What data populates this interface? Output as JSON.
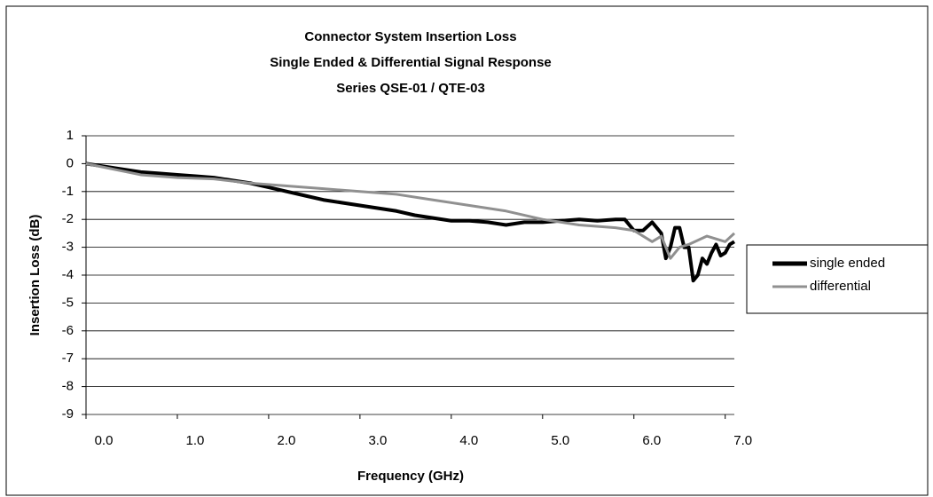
{
  "chart_data": {
    "type": "line",
    "title": [
      "Connector System Insertion Loss",
      "Single Ended & Differential Signal Response",
      "Series QSE-01 / QTE-03"
    ],
    "xlabel": "Frequency (GHz)",
    "ylabel": "Insertion Loss (dB)",
    "xlim": [
      0,
      7.1
    ],
    "ylim": [
      -9,
      1
    ],
    "xticks": [
      {
        "value": 0,
        "label": "0.0"
      },
      {
        "value": 1,
        "label": "1.0"
      },
      {
        "value": 2,
        "label": "2.0"
      },
      {
        "value": 3,
        "label": "3.0"
      },
      {
        "value": 4,
        "label": "4.0"
      },
      {
        "value": 5,
        "label": "5.0"
      },
      {
        "value": 6,
        "label": "6.0"
      },
      {
        "value": 7,
        "label": "7.0"
      }
    ],
    "yticks": [
      1,
      0,
      -1,
      -2,
      -3,
      -4,
      -5,
      -6,
      -7,
      -8,
      -9
    ],
    "grid": true,
    "legend": "right",
    "series": [
      {
        "name": "single ended",
        "color": "#000000",
        "x": [
          0,
          0.2,
          0.4,
          0.6,
          0.8,
          1.0,
          1.2,
          1.4,
          1.6,
          1.8,
          2.0,
          2.2,
          2.4,
          2.6,
          2.8,
          3.0,
          3.2,
          3.4,
          3.6,
          3.8,
          4.0,
          4.2,
          4.4,
          4.6,
          4.8,
          5.0,
          5.2,
          5.4,
          5.6,
          5.8,
          5.9,
          6.0,
          6.1,
          6.2,
          6.3,
          6.35,
          6.4,
          6.45,
          6.5,
          6.55,
          6.6,
          6.65,
          6.7,
          6.75,
          6.8,
          6.85,
          6.9,
          6.95,
          7.0,
          7.05,
          7.1
        ],
        "values": [
          0,
          -0.1,
          -0.2,
          -0.3,
          -0.35,
          -0.4,
          -0.45,
          -0.5,
          -0.6,
          -0.7,
          -0.85,
          -1.0,
          -1.15,
          -1.3,
          -1.4,
          -1.5,
          -1.6,
          -1.7,
          -1.85,
          -1.95,
          -2.05,
          -2.05,
          -2.1,
          -2.2,
          -2.1,
          -2.1,
          -2.05,
          -2.0,
          -2.05,
          -2.0,
          -2.0,
          -2.4,
          -2.4,
          -2.1,
          -2.5,
          -3.4,
          -3.0,
          -2.3,
          -2.3,
          -3.0,
          -3.0,
          -4.2,
          -4.0,
          -3.4,
          -3.6,
          -3.2,
          -2.9,
          -3.3,
          -3.2,
          -2.9,
          -2.8
        ]
      },
      {
        "name": "differential",
        "color": "#909090",
        "x": [
          0,
          0.3,
          0.6,
          1.0,
          1.4,
          1.8,
          2.2,
          2.6,
          3.0,
          3.4,
          3.8,
          4.2,
          4.6,
          5.0,
          5.4,
          5.8,
          6.0,
          6.2,
          6.3,
          6.4,
          6.5,
          6.6,
          6.8,
          7.0,
          7.1
        ],
        "values": [
          0,
          -0.2,
          -0.4,
          -0.5,
          -0.55,
          -0.7,
          -0.8,
          -0.9,
          -1.0,
          -1.1,
          -1.3,
          -1.5,
          -1.7,
          -2.0,
          -2.2,
          -2.3,
          -2.4,
          -2.8,
          -2.6,
          -3.4,
          -3.0,
          -2.9,
          -2.6,
          -2.8,
          -2.5
        ]
      }
    ]
  }
}
